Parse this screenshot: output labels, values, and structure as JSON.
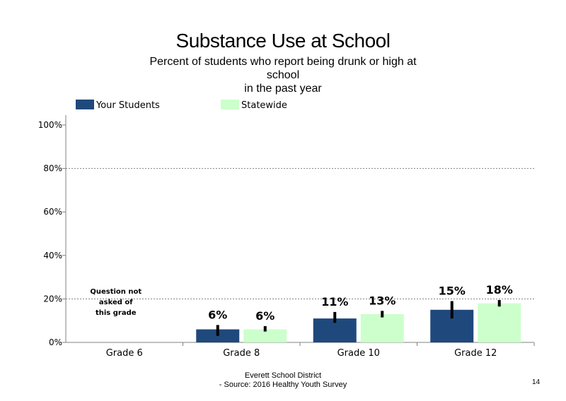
{
  "slide": {
    "title": "Substance Use at School",
    "subtitle_lines": [
      "Percent of students  who report being drunk or high at",
      "school",
      "in the past year"
    ],
    "footer_line1": "Everett School District",
    "footer_line2": "- Source: 2016 Healthy  Youth Survey",
    "page_number": "14"
  },
  "chart_data": {
    "type": "bar",
    "title": "Substance Use at School",
    "categories": [
      "Grade 6",
      "Grade 8",
      "Grade 10",
      "Grade 12"
    ],
    "series": [
      {
        "name": "Your Students",
        "color": "#1f497d",
        "values": [
          null,
          6,
          11,
          15
        ],
        "labels": [
          "",
          "6%",
          "11%",
          "15%"
        ],
        "error_low": [
          null,
          3,
          9,
          11
        ],
        "error_high": [
          null,
          8,
          14,
          19
        ]
      },
      {
        "name": "Statewide",
        "color": "#ccffcc",
        "values": [
          null,
          6,
          13,
          18
        ],
        "labels": [
          "",
          "6%",
          "13%",
          "18%"
        ],
        "error_low": [
          null,
          5,
          11.5,
          16.5
        ],
        "error_high": [
          null,
          7.5,
          14.5,
          19.5
        ]
      }
    ],
    "ylim": [
      0,
      100
    ],
    "y_ticks": [
      0,
      20,
      40,
      60,
      80,
      100
    ],
    "y_tick_labels": [
      "0%",
      "20%",
      "40%",
      "60%",
      "80%",
      "100%"
    ],
    "gridlines_at": [
      20,
      80
    ],
    "legend_position": "top-left",
    "annotation": {
      "category": "Grade 6",
      "lines": [
        "Question not",
        "asked of",
        "this grade"
      ]
    }
  }
}
